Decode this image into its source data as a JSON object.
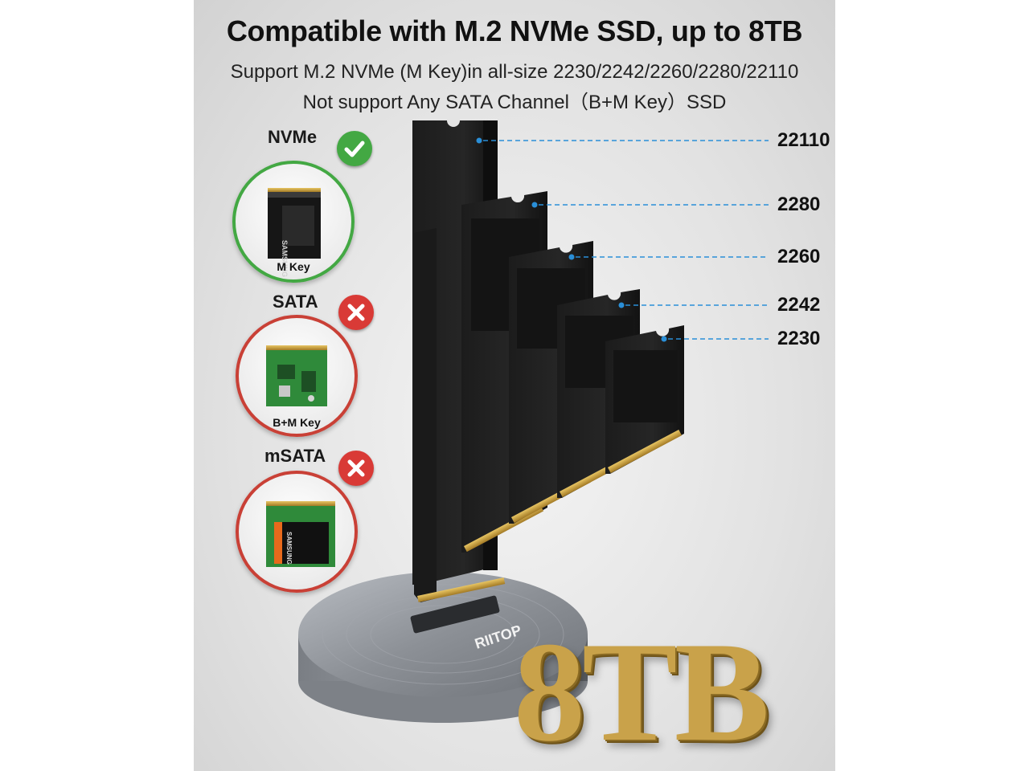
{
  "headline": "Compatible with M.2 NVMe SSD, up to 8TB",
  "subline_1": "Support M.2 NVMe (M Key)in all-size 2230/2242/2260/2280/22110",
  "subline_2": "Not support Any SATA Channel（B+M Key）SSD",
  "compatibility": [
    {
      "type": "NVMe",
      "key_label": "M Key",
      "supported": true,
      "card_text": "SAMSUNG"
    },
    {
      "type": "SATA",
      "key_label": "B+M Key",
      "supported": false
    },
    {
      "type": "mSATA",
      "key_label": "",
      "supported": false,
      "card_text": "SAMSUNG"
    }
  ],
  "sizes": [
    "22110",
    "2280",
    "2260",
    "2242",
    "2230"
  ],
  "dock_brand": "RIITOP",
  "capacity": "8TB",
  "colors": {
    "supported": "#43a843",
    "unsupported": "#d93a36",
    "leader_line": "#2a8fd8",
    "capacity_gold": "#c9a24a"
  },
  "icons": {
    "supported": "check-icon",
    "unsupported": "cross-icon"
  }
}
